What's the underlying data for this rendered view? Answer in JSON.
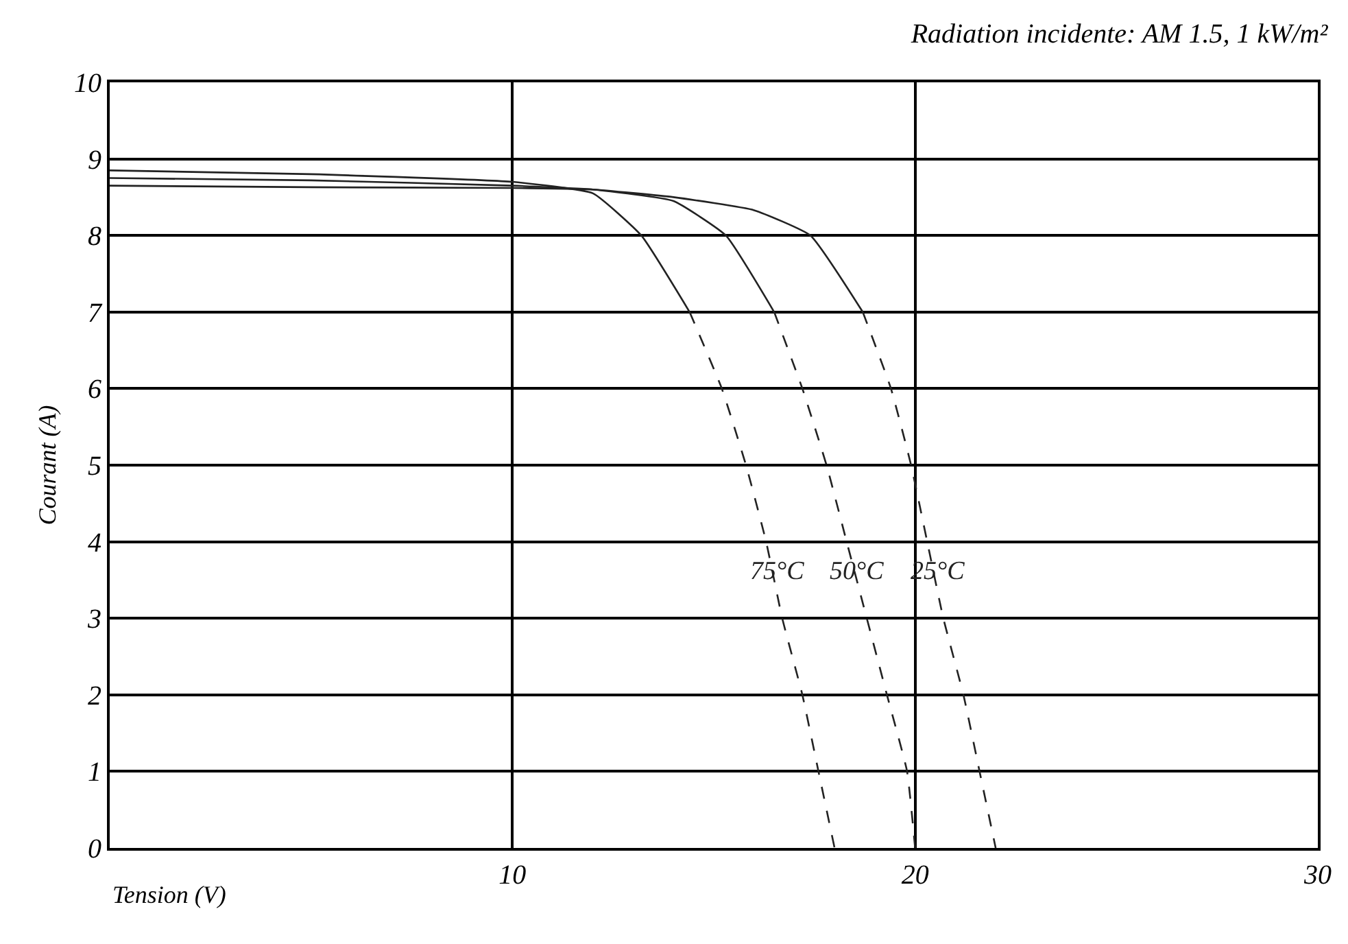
{
  "chart_data": {
    "type": "line",
    "title": "Radiation incidente: AM 1.5, 1 kW/m²",
    "xlabel": "Tension (V)",
    "ylabel": "Courant (A)",
    "xlim": [
      0,
      30
    ],
    "xticks": [
      10,
      20,
      30
    ],
    "ylim": [
      0,
      10
    ],
    "yticks": [
      0,
      1,
      2,
      3,
      4,
      5,
      6,
      7,
      8,
      9,
      10
    ],
    "grid": true,
    "marker": "none",
    "series": [
      {
        "color": "#222222",
        "line_style": "solid",
        "x": [
          0,
          5,
          10,
          12,
          13.2,
          14.4
        ],
        "values": [
          8.85,
          8.8,
          8.7,
          8.55,
          8.0,
          7.0
        ]
      },
      {
        "color": "#222222",
        "line_style": "dashed",
        "x": [
          14.4,
          15.2,
          15.8,
          16.3,
          16.7,
          17.2,
          17.6,
          18.0
        ],
        "values": [
          7,
          6,
          5,
          4,
          3,
          2,
          1,
          0
        ]
      },
      {
        "color": "#222222",
        "line_style": "solid",
        "x": [
          0,
          5,
          10,
          12,
          14,
          15.3,
          16.5
        ],
        "values": [
          8.75,
          8.72,
          8.65,
          8.6,
          8.45,
          8.0,
          7.0
        ]
      },
      {
        "color": "#222222",
        "line_style": "dashed",
        "x": [
          16.5,
          17.2,
          17.8,
          18.3,
          18.8,
          19.3,
          19.8,
          20.0
        ],
        "values": [
          7,
          6,
          5,
          4,
          3,
          2,
          1,
          0
        ]
      },
      {
        "color": "#222222",
        "line_style": "solid",
        "x": [
          0,
          5,
          10,
          12,
          14,
          16,
          17.4,
          18.7
        ],
        "values": [
          8.65,
          8.63,
          8.62,
          8.6,
          8.5,
          8.33,
          8.0,
          7.0
        ]
      },
      {
        "color": "#222222",
        "line_style": "dashed",
        "x": [
          18.7,
          19.4,
          19.9,
          20.3,
          20.7,
          21.2,
          21.6,
          22.0
        ],
        "values": [
          7,
          6,
          5,
          4,
          3,
          2,
          1,
          0
        ]
      }
    ],
    "annotations": [
      {
        "text": "75°C",
        "x": 16.3,
        "y": 4
      },
      {
        "text": "50°C",
        "x": 18.3,
        "y": 4
      },
      {
        "text": "25°C",
        "x": 20.3,
        "y": 4
      }
    ]
  }
}
